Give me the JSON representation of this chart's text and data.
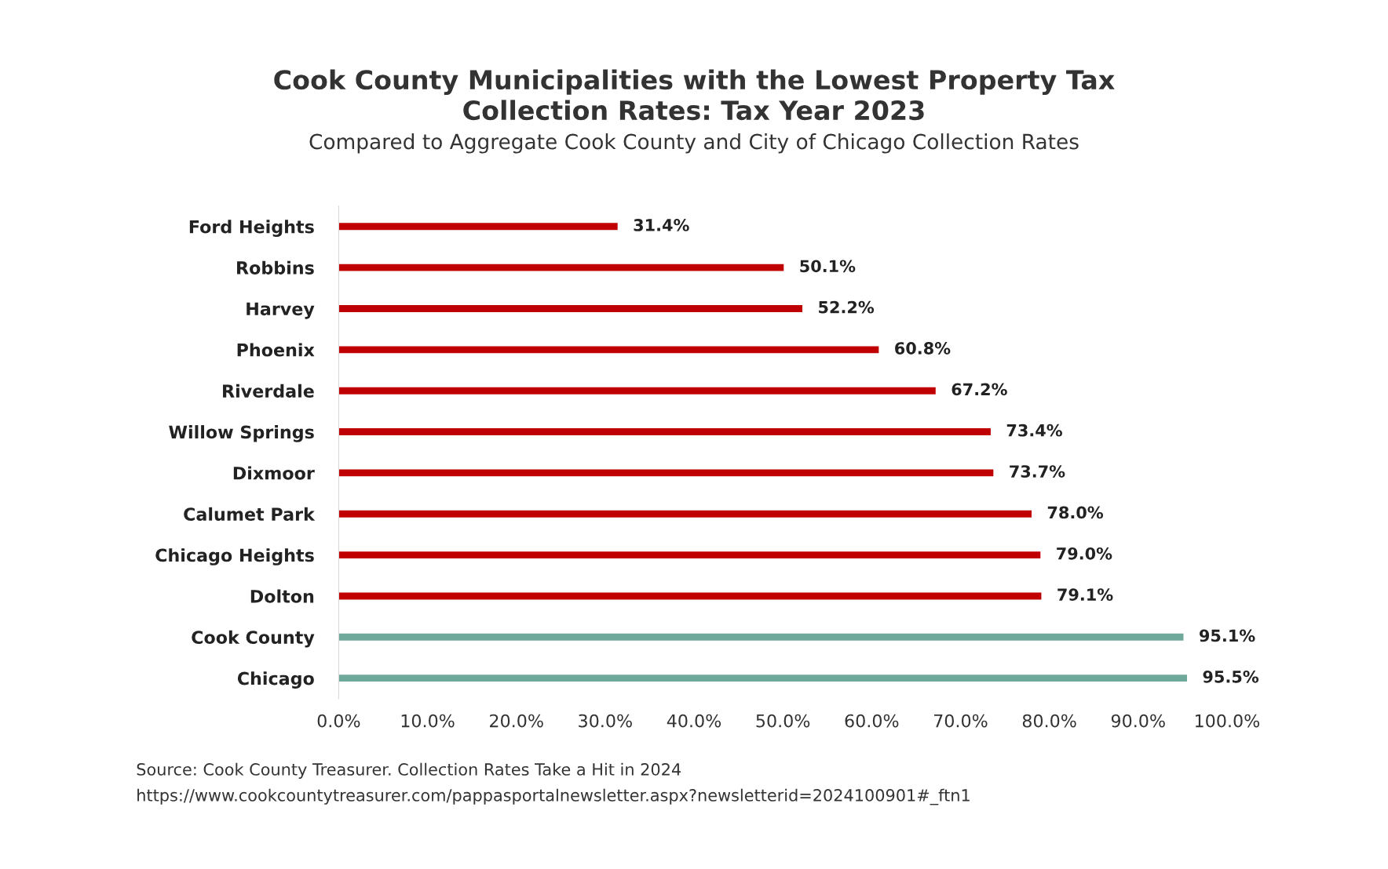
{
  "chart_data": {
    "type": "bar",
    "orientation": "horizontal",
    "title": "Cook County Municipalities with the Lowest Property Tax\nCollection Rates: Tax Year 2023",
    "subtitle": "Compared to Aggregate Cook County and City of Chicago Collection Rates",
    "categories": [
      "Ford Heights",
      "Robbins",
      "Harvey",
      "Phoenix",
      "Riverdale",
      "Willow Springs",
      "Dixmoor",
      "Calumet Park",
      "Chicago Heights",
      "Dolton",
      "Cook County",
      "Chicago"
    ],
    "values": [
      31.4,
      50.1,
      52.2,
      60.8,
      67.2,
      73.4,
      73.7,
      78.0,
      79.0,
      79.1,
      95.1,
      95.5
    ],
    "value_labels": [
      "31.4%",
      "50.1%",
      "52.2%",
      "60.8%",
      "67.2%",
      "73.4%",
      "73.7%",
      "78.0%",
      "79.0%",
      "79.1%",
      "95.1%",
      "95.5%"
    ],
    "colors": [
      "#c00000",
      "#c00000",
      "#c00000",
      "#c00000",
      "#c00000",
      "#c00000",
      "#c00000",
      "#c00000",
      "#c00000",
      "#c00000",
      "#6fa99c",
      "#6fa99c"
    ],
    "xlim": [
      0,
      100
    ],
    "xticks": [
      {
        "value": 0,
        "label": "0.0%"
      },
      {
        "value": 10,
        "label": "10.0%"
      },
      {
        "value": 20,
        "label": "20.0%"
      },
      {
        "value": 30,
        "label": "30.0%"
      },
      {
        "value": 40,
        "label": "40.0%"
      },
      {
        "value": 50,
        "label": "50.0%"
      },
      {
        "value": 60,
        "label": "60.0%"
      },
      {
        "value": 70,
        "label": "70.0%"
      },
      {
        "value": 80,
        "label": "80.0%"
      },
      {
        "value": 90,
        "label": "90.0%"
      },
      {
        "value": 100,
        "label": "100.0%"
      }
    ],
    "grid": false,
    "legend": false,
    "annotations": [
      "Source: Cook County Treasurer. Collection Rates Take a Hit in 2024",
      "https://www.cookcountytreasurer.com/pappasportalnewsletter.aspx?newsletterid=2024100901#_ftn1"
    ]
  }
}
